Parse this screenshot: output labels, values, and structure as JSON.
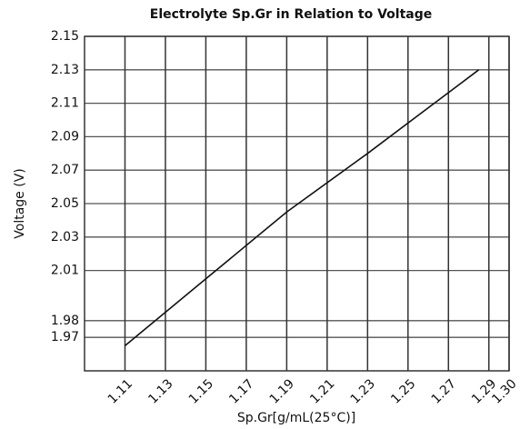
{
  "chart_data": {
    "type": "line",
    "title": "Electrolyte Sp.Gr in Relation to Voltage",
    "x_label": "Sp.Gr[g/mL(25°C)]",
    "y_label": "Voltage (V)",
    "series": [
      {
        "name": "Voltage",
        "color": "#111111",
        "x": [
          1.11,
          1.15,
          1.19,
          1.23,
          1.285
        ],
        "values": [
          1.965,
          2.005,
          2.045,
          2.08,
          2.13
        ]
      }
    ],
    "xlim": [
      1.09,
      1.3
    ],
    "xticks": [
      1.11,
      1.13,
      1.15,
      1.17,
      1.19,
      1.21,
      1.23,
      1.25,
      1.27,
      1.29,
      {
        "value": 1.3,
        "label": "1.30"
      }
    ],
    "ylim": [
      1.95,
      2.15
    ],
    "yticks": [
      2.15,
      2.13,
      2.11,
      2.09,
      2.07,
      2.05,
      2.03,
      2.01,
      1.98,
      1.97
    ],
    "grid": true
  }
}
